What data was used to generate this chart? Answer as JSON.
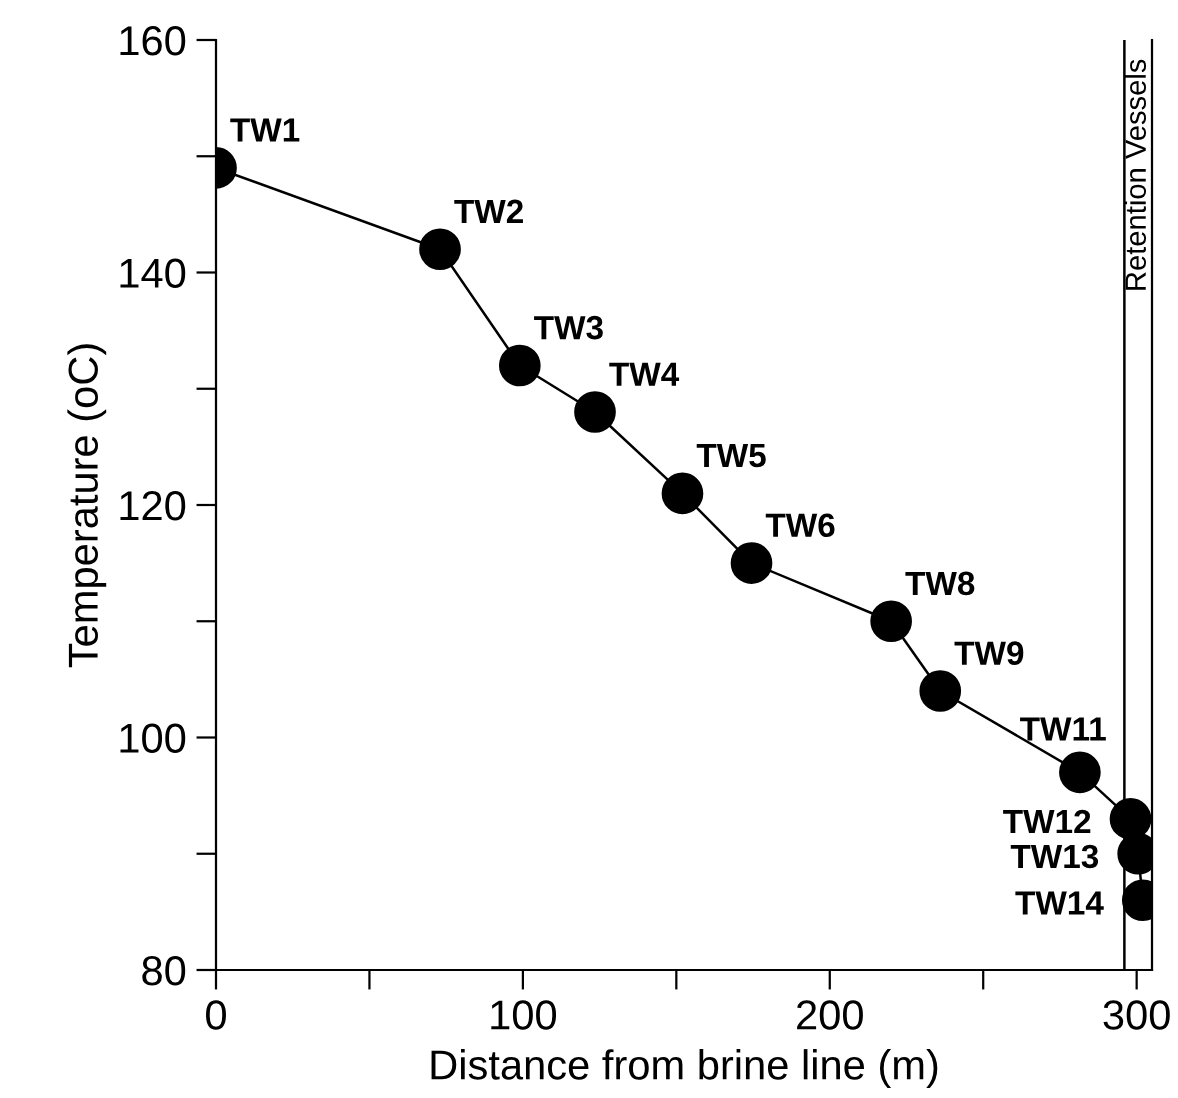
{
  "chart_data": {
    "type": "line",
    "xlabel": "Distance from brine line (m)",
    "ylabel": "Temperature (oC)",
    "x": [
      0,
      73,
      99,
      123.5,
      152,
      174.5,
      220,
      236,
      281.5,
      298,
      300.5,
      302
    ],
    "series": [
      {
        "color": "#000000",
        "values": [
          149,
          142,
          132,
          128,
          121,
          115,
          110,
          104,
          97,
          93,
          90,
          86
        ]
      }
    ],
    "marker": "circle",
    "line_style": "solid",
    "grid": false,
    "legend": false,
    "xlim": [
      0,
      305
    ],
    "ylim": [
      80,
      160
    ],
    "xticks": [
      0,
      {
        "value": 50,
        "label": null
      },
      100,
      {
        "value": 150,
        "label": null
      },
      200,
      {
        "value": 250,
        "label": null
      },
      300
    ],
    "yticks": [
      80,
      {
        "value": 90,
        "label": null
      },
      100,
      {
        "value": 110,
        "label": null
      },
      120,
      {
        "value": 130,
        "label": null
      },
      140,
      {
        "value": 150,
        "label": null
      },
      160
    ],
    "ref_lines": [
      {
        "axis": "x",
        "value": 296,
        "label": "Retention Vessels",
        "color": "#000000"
      }
    ],
    "annotations": [
      {
        "text": "TW1",
        "x": 0,
        "y": 149
      },
      {
        "text": "TW2",
        "x": 73,
        "y": 142
      },
      {
        "text": "TW3",
        "x": 99,
        "y": 132
      },
      {
        "text": "TW4",
        "x": 123.5,
        "y": 128
      },
      {
        "text": "TW5",
        "x": 152,
        "y": 121
      },
      {
        "text": "TW6",
        "x": 174.5,
        "y": 115
      },
      {
        "text": "TW8",
        "x": 220,
        "y": 110
      },
      {
        "text": "TW9",
        "x": 236,
        "y": 104
      },
      {
        "text": "TW11",
        "x": 281.5,
        "y": 97
      },
      {
        "text": "TW12",
        "x": 298,
        "y": 93
      },
      {
        "text": "TW13",
        "x": 300.5,
        "y": 90
      },
      {
        "text": "TW14",
        "x": 302,
        "y": 86
      }
    ]
  }
}
